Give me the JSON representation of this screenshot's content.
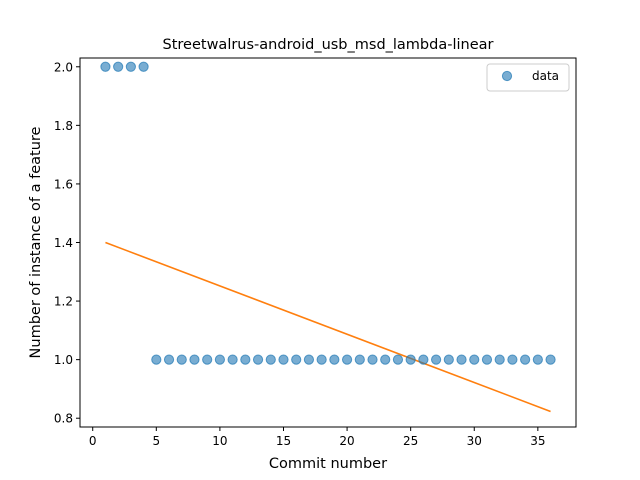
{
  "chart_data": {
    "type": "scatter",
    "title": "Streetwalrus-android_usb_msd_lambda-linear",
    "xlabel": "Commit number",
    "ylabel": "Number of instance of a feature",
    "xlim": [
      -1.0,
      38.0
    ],
    "ylim": [
      0.77,
      2.03
    ],
    "xticks": [
      0,
      5,
      10,
      15,
      20,
      25,
      30,
      35
    ],
    "yticks": [
      0.8,
      1.0,
      1.2,
      1.4,
      1.6,
      1.8,
      2.0
    ],
    "ytick_labels": [
      "0.8",
      "1.0",
      "1.2",
      "1.4",
      "1.6",
      "1.8",
      "2.0"
    ],
    "grid": false,
    "legend_position": "top-right",
    "series": [
      {
        "name": "data",
        "kind": "scatter",
        "color": "#1f77b4",
        "x": [
          1,
          2,
          3,
          4,
          5,
          6,
          7,
          8,
          9,
          10,
          11,
          12,
          13,
          14,
          15,
          16,
          17,
          18,
          19,
          20,
          21,
          22,
          23,
          24,
          25,
          26,
          27,
          28,
          29,
          30,
          31,
          32,
          33,
          34,
          35,
          36
        ],
        "y": [
          2,
          2,
          2,
          2,
          1,
          1,
          1,
          1,
          1,
          1,
          1,
          1,
          1,
          1,
          1,
          1,
          1,
          1,
          1,
          1,
          1,
          1,
          1,
          1,
          1,
          1,
          1,
          1,
          1,
          1,
          1,
          1,
          1,
          1,
          1,
          1
        ]
      },
      {
        "kind": "line",
        "color": "#ff7f0e",
        "x": [
          1,
          36
        ],
        "y": [
          1.4,
          0.823
        ]
      }
    ]
  }
}
